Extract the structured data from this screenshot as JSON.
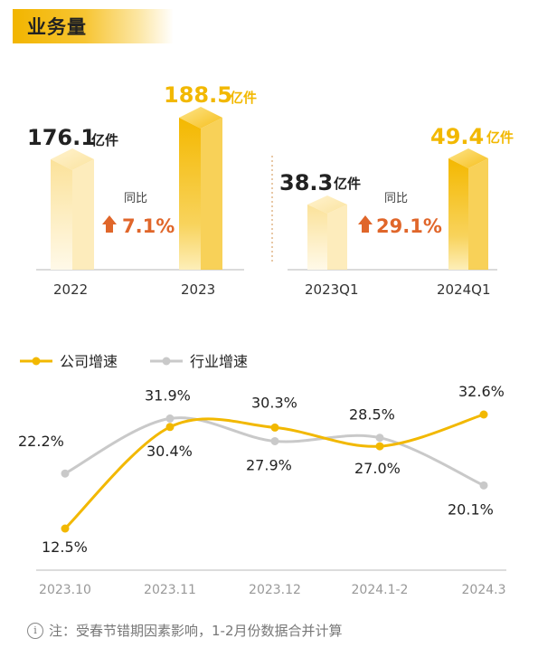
{
  "header": {
    "title": "业务量"
  },
  "note": {
    "icon": "info-icon",
    "text": "注：受春节错期因素影响，1-2月份数据合并计算"
  },
  "colors": {
    "gold": "#f2b800",
    "gray": "#c9c9c9",
    "up": "#e0662a"
  },
  "chart_data": [
    {
      "type": "bar",
      "categories": [
        "2022",
        "2023"
      ],
      "values": [
        176.1,
        188.5
      ],
      "value_labels": [
        "176.1",
        "188.5"
      ],
      "unit": "亿件",
      "yoy_label": "同比",
      "yoy_value": "7.1%"
    },
    {
      "type": "bar",
      "categories": [
        "2023Q1",
        "2024Q1"
      ],
      "values": [
        38.3,
        49.4
      ],
      "value_labels": [
        "38.3",
        "49.4"
      ],
      "unit": "亿件",
      "yoy_label": "同比",
      "yoy_value": "29.1%"
    },
    {
      "type": "line",
      "categories": [
        "2023.10",
        "2023.11",
        "2023.12",
        "2024.1-2",
        "2024.3"
      ],
      "series": [
        {
          "name": "公司增速",
          "values": [
            12.5,
            30.4,
            30.3,
            27.0,
            32.6
          ],
          "labels": [
            "12.5%",
            "30.4%",
            "30.3%",
            "27.0%",
            "32.6%"
          ]
        },
        {
          "name": "行业增速",
          "values": [
            22.2,
            31.9,
            27.9,
            28.5,
            20.1
          ],
          "labels": [
            "22.2%",
            "31.9%",
            "27.9%",
            "28.5%",
            "20.1%"
          ]
        }
      ]
    }
  ]
}
